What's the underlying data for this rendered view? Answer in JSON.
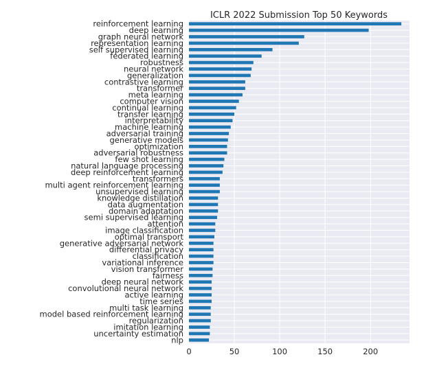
{
  "chart_data": {
    "type": "bar",
    "orientation": "horizontal",
    "title": "ICLR 2022 Submission Top 50 Keywords",
    "xlabel": "",
    "ylabel": "",
    "xlim": [
      0,
      243
    ],
    "xticks": [
      0,
      50,
      100,
      150,
      200
    ],
    "grid": true,
    "legend": "none",
    "colors": {
      "bar": "#1f77b4",
      "plot_background": "#eaeaf2",
      "grid": "#ffffff",
      "text": "#262626"
    },
    "categories": [
      "reinforcement learning",
      "deep learning",
      "graph neural network",
      "representation learning",
      "self supervised learning",
      "federated learning",
      "robustness",
      "neural network",
      "generalization",
      "contrastive learning",
      "transformer",
      "meta learning",
      "computer vision",
      "continual learning",
      "transfer learning",
      "interpretability",
      "machine learning",
      "adversarial training",
      "generative models",
      "optimization",
      "adversarial robustness",
      "few shot learning",
      "natural language processing",
      "deep reinforcement learning",
      "transformers",
      "multi agent reinforcement learning",
      "unsupervised learning",
      "knowledge distillation",
      "data augmentation",
      "domain adaptation",
      "semi supervised learning",
      "attention",
      "image classification",
      "optimal transport",
      "generative adversarial network",
      "differential privacy",
      "classification",
      "variational inference",
      "vision transformer",
      "fairness",
      "deep neural network",
      "convolutional neural network",
      "active learning",
      "time series",
      "multi task learning",
      "model based reinforcement learning",
      "regularization",
      "imitation learning",
      "uncertainty estimation",
      "nlp"
    ],
    "values": [
      234,
      198,
      127,
      121,
      92,
      80,
      71,
      69,
      68,
      62,
      62,
      59,
      55,
      52,
      50,
      48,
      46,
      44,
      43,
      42,
      42,
      39,
      38,
      37,
      34,
      34,
      34,
      32,
      32,
      32,
      31,
      29,
      29,
      28,
      27,
      27,
      27,
      27,
      26,
      26,
      25,
      25,
      25,
      25,
      24,
      24,
      24,
      23,
      23,
      22
    ]
  }
}
